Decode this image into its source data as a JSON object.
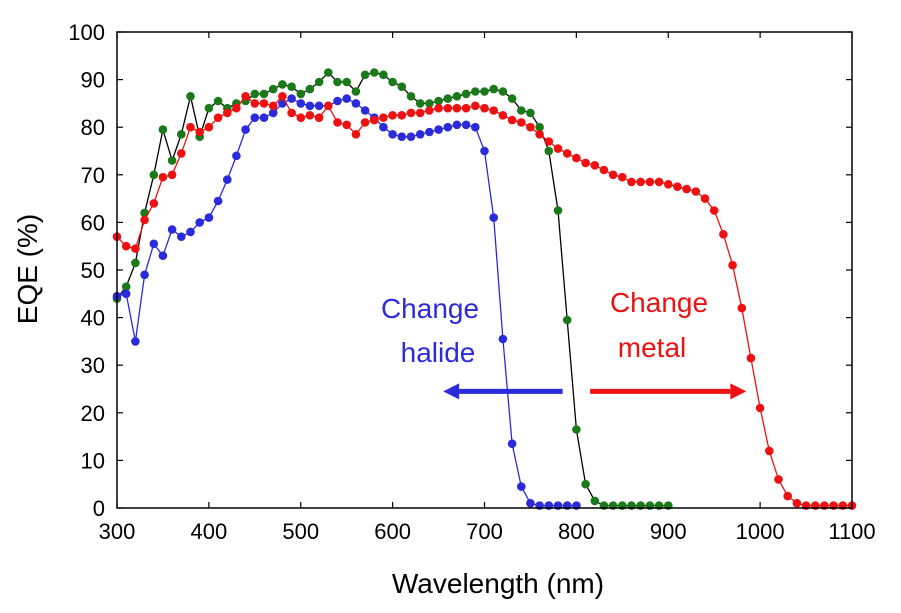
{
  "chart_data": {
    "type": "scatter",
    "xlabel": "Wavelength (nm)",
    "ylabel": "EQE (%)",
    "xlim": [
      300,
      1100
    ],
    "ylim": [
      0,
      100
    ],
    "xticks": [
      300,
      400,
      500,
      600,
      700,
      800,
      900,
      1000,
      1100
    ],
    "yticks": [
      0,
      10,
      20,
      30,
      40,
      50,
      60,
      70,
      80,
      90,
      100
    ],
    "grid": false,
    "series": [
      {
        "color": "#000000",
        "marker_color": "#1a7a1a",
        "x": [
          300,
          310,
          320,
          330,
          340,
          350,
          360,
          370,
          380,
          390,
          400,
          410,
          420,
          430,
          440,
          450,
          460,
          470,
          480,
          490,
          500,
          510,
          520,
          530,
          540,
          550,
          560,
          570,
          580,
          590,
          600,
          610,
          620,
          630,
          640,
          650,
          660,
          670,
          680,
          690,
          700,
          710,
          720,
          730,
          740,
          750,
          760,
          770,
          780,
          790,
          800,
          810,
          820,
          830,
          840,
          850,
          860,
          870,
          880,
          890,
          900
        ],
        "y": [
          44,
          46.5,
          51.5,
          62,
          70,
          79.5,
          73,
          78.5,
          86.5,
          78,
          84,
          85.5,
          84,
          85,
          85.5,
          87,
          87,
          88,
          89,
          88.5,
          87,
          88,
          89.5,
          91.5,
          89.5,
          89.5,
          87.5,
          91,
          91.5,
          91,
          89.5,
          88.5,
          86.5,
          85,
          85,
          85.5,
          86,
          86.5,
          87,
          87.5,
          87.5,
          88,
          87.5,
          86,
          83.5,
          83,
          80,
          75,
          62.5,
          39.5,
          16.5,
          5,
          1.5,
          0.5,
          0.5,
          0.5,
          0.5,
          0.5,
          0.5,
          0.5,
          0.5
        ]
      },
      {
        "color": "#2b2bd9",
        "marker_color": "#2b2bd9",
        "x": [
          300,
          310,
          320,
          330,
          340,
          350,
          360,
          370,
          380,
          390,
          400,
          410,
          420,
          430,
          440,
          450,
          460,
          470,
          480,
          490,
          500,
          510,
          520,
          530,
          540,
          550,
          560,
          570,
          580,
          590,
          600,
          610,
          620,
          630,
          640,
          650,
          660,
          670,
          680,
          690,
          700,
          710,
          720,
          730,
          740,
          750,
          760,
          770,
          780,
          790,
          800
        ],
        "y": [
          44.5,
          45,
          35,
          49,
          55.5,
          53,
          58.5,
          57,
          58,
          60,
          61,
          64.5,
          69,
          74,
          79.5,
          82,
          82,
          83,
          85,
          86,
          85,
          84.5,
          84.5,
          84.5,
          85.5,
          86,
          85,
          83.5,
          82,
          80,
          78.5,
          78,
          78,
          78.5,
          79,
          79.5,
          80,
          80.5,
          80.5,
          80,
          75,
          61,
          35.5,
          13.5,
          4.5,
          1,
          0.5,
          0.5,
          0.5,
          0.5,
          0.5
        ]
      },
      {
        "color": "#ee1111",
        "marker_color": "#ee1111",
        "x": [
          300,
          310,
          320,
          330,
          340,
          350,
          360,
          370,
          380,
          390,
          400,
          410,
          420,
          430,
          440,
          450,
          460,
          470,
          480,
          490,
          500,
          510,
          520,
          530,
          540,
          550,
          560,
          570,
          580,
          590,
          600,
          610,
          620,
          630,
          640,
          650,
          660,
          670,
          680,
          690,
          700,
          710,
          720,
          730,
          740,
          750,
          760,
          770,
          780,
          790,
          800,
          810,
          820,
          830,
          840,
          850,
          860,
          870,
          880,
          890,
          900,
          910,
          920,
          930,
          940,
          950,
          960,
          970,
          980,
          990,
          1000,
          1010,
          1020,
          1030,
          1040,
          1050,
          1060,
          1070,
          1080,
          1090,
          1100
        ],
        "y": [
          57,
          55,
          54.5,
          60.5,
          64,
          69.5,
          70,
          74.5,
          80,
          79,
          80,
          82,
          83,
          84,
          86.5,
          85,
          85,
          84.5,
          86.5,
          83,
          82,
          82.5,
          82,
          84.5,
          81,
          80.5,
          78.5,
          81,
          81.5,
          82,
          82.5,
          82.5,
          83,
          83,
          83.5,
          84,
          84,
          84,
          84,
          84.5,
          84,
          83.5,
          82.5,
          81.5,
          81,
          80,
          78.5,
          77,
          75.5,
          74.5,
          73.5,
          72.5,
          72,
          71,
          70,
          69.5,
          68.5,
          68.5,
          68.5,
          68.5,
          68,
          67.5,
          67,
          66.5,
          65,
          62.5,
          57.5,
          51,
          42,
          31.5,
          21,
          12,
          6,
          2.5,
          1,
          0.5,
          0.5,
          0.5,
          0.5,
          0.5,
          0.5
        ]
      }
    ],
    "annotations": [
      {
        "text": "Change",
        "color": "#2b2bd9"
      },
      {
        "text": "halide",
        "color": "#2b2bd9"
      },
      {
        "text": "Change",
        "color": "#ee1111"
      },
      {
        "text": "metal",
        "color": "#ee1111"
      }
    ],
    "arrows": [
      {
        "color": "#2b2bd9",
        "from_x": 785,
        "to_x": 655,
        "y": 24.5
      },
      {
        "color": "#ee1111",
        "from_x": 815,
        "to_x": 985,
        "y": 24.5
      }
    ]
  }
}
